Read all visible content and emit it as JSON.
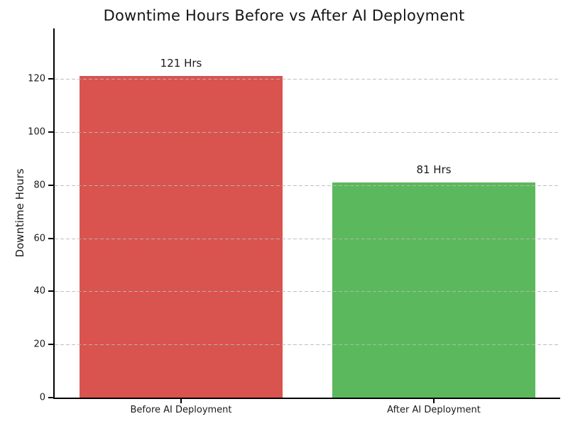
{
  "chart_data": {
    "type": "bar",
    "title": "Downtime Hours Before vs After AI Deployment",
    "ylabel": "Downtime Hours",
    "xlabel": "",
    "categories": [
      "Before AI Deployment",
      "After AI Deployment"
    ],
    "values": [
      121,
      81
    ],
    "bar_labels": [
      "121 Hrs",
      "81 Hrs"
    ],
    "bar_colors": [
      "#d9534f",
      "#5cb85c"
    ],
    "yticks": [
      0,
      20,
      40,
      60,
      80,
      100,
      120
    ],
    "ylim": [
      0,
      139
    ],
    "grid": "horizontal-dashed",
    "grid_color": "#b9b9b9",
    "title_color": "#151515",
    "axis_color": "#000000",
    "legend": "none"
  }
}
